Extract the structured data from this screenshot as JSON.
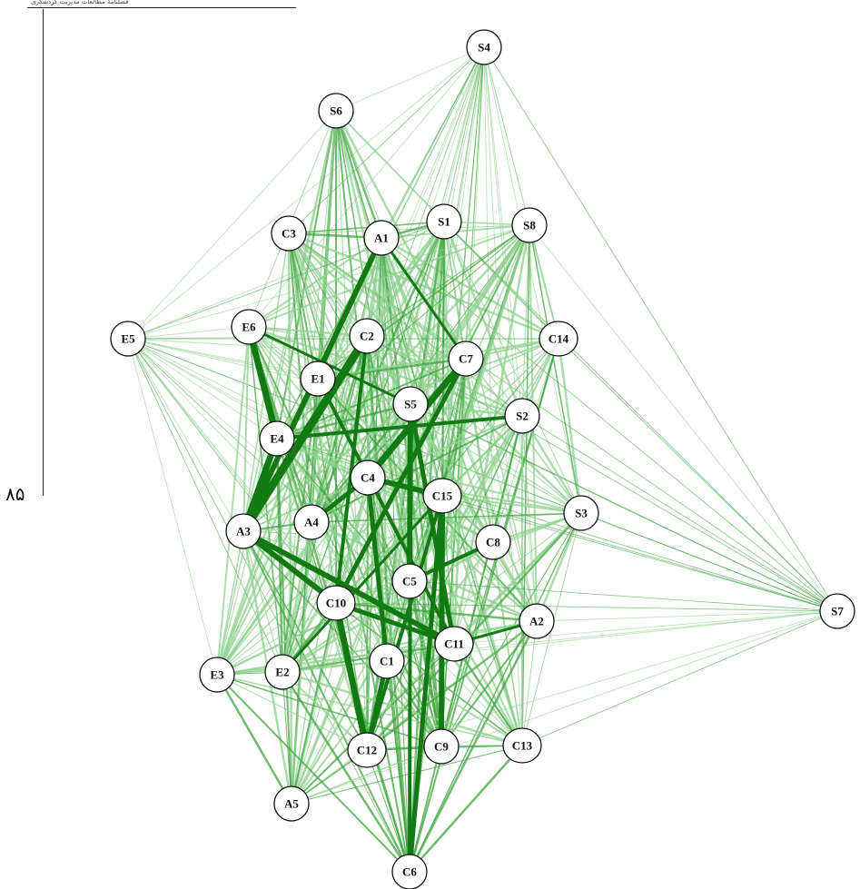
{
  "page": {
    "header_text": "فصلنامهٔ مطالعات مدیریت گردشگری",
    "page_number": "۸۵"
  },
  "colors": {
    "edge_light": "#8fd08f",
    "edge_mid": "#3fa63f",
    "edge_dark": "#137a13",
    "node_fill": "#ffffff",
    "node_stroke": "#111111"
  },
  "diagram": {
    "type": "network-graph",
    "nodes": [
      {
        "id": "S4",
        "label": "S4"
      },
      {
        "id": "S6",
        "label": "S6"
      },
      {
        "id": "C3",
        "label": "C3"
      },
      {
        "id": "A1",
        "label": "A1"
      },
      {
        "id": "S1",
        "label": "S1"
      },
      {
        "id": "S8",
        "label": "S8"
      },
      {
        "id": "E5",
        "label": "E5"
      },
      {
        "id": "E6",
        "label": "E6"
      },
      {
        "id": "C2",
        "label": "C2"
      },
      {
        "id": "C7",
        "label": "C7"
      },
      {
        "id": "C14",
        "label": "C14"
      },
      {
        "id": "E1",
        "label": "E1"
      },
      {
        "id": "S5",
        "label": "S5"
      },
      {
        "id": "S2",
        "label": "S2"
      },
      {
        "id": "E4",
        "label": "E4"
      },
      {
        "id": "C4",
        "label": "C4"
      },
      {
        "id": "C15",
        "label": "C15"
      },
      {
        "id": "S3",
        "label": "S3"
      },
      {
        "id": "A3",
        "label": "A3"
      },
      {
        "id": "A4",
        "label": "A4"
      },
      {
        "id": "C8",
        "label": "C8"
      },
      {
        "id": "C5",
        "label": "C5"
      },
      {
        "id": "S7",
        "label": "S7"
      },
      {
        "id": "C10",
        "label": "C10"
      },
      {
        "id": "A2",
        "label": "A2"
      },
      {
        "id": "C11",
        "label": "C11"
      },
      {
        "id": "E3",
        "label": "E3"
      },
      {
        "id": "E2",
        "label": "E2"
      },
      {
        "id": "C1",
        "label": "C1"
      },
      {
        "id": "C12",
        "label": "C12"
      },
      {
        "id": "C9",
        "label": "C9"
      },
      {
        "id": "C13",
        "label": "C13"
      },
      {
        "id": "A5",
        "label": "A5"
      },
      {
        "id": "C6",
        "label": "C6"
      }
    ],
    "strong_edges": [
      [
        "A3",
        "C2",
        9
      ],
      [
        "A3",
        "A1",
        6
      ],
      [
        "A3",
        "E4",
        7
      ],
      [
        "E6",
        "E4",
        7
      ],
      [
        "A3",
        "C11",
        6
      ],
      [
        "A3",
        "C10",
        6
      ],
      [
        "C4",
        "C7",
        7
      ],
      [
        "C4",
        "C15",
        6
      ],
      [
        "C10",
        "C12",
        7
      ],
      [
        "C1",
        "C12",
        5
      ],
      [
        "C6",
        "C15",
        5
      ],
      [
        "C9",
        "C15",
        6
      ],
      [
        "C5",
        "S5",
        6
      ],
      [
        "C11",
        "S5",
        5
      ],
      [
        "C10",
        "C7",
        5
      ],
      [
        "E1",
        "C11",
        4
      ],
      [
        "A1",
        "C7",
        3
      ],
      [
        "C4",
        "C1",
        5
      ],
      [
        "C8",
        "C5",
        4
      ],
      [
        "C2",
        "C10",
        4
      ],
      [
        "E4",
        "S2",
        4
      ],
      [
        "C4",
        "A4",
        5
      ],
      [
        "C11",
        "A2",
        3
      ],
      [
        "C12",
        "C15",
        4
      ],
      [
        "C6",
        "S5",
        4
      ],
      [
        "E2",
        "C15",
        3
      ],
      [
        "E6",
        "S5",
        3
      ],
      [
        "C10",
        "C11",
        5
      ]
    ]
  }
}
